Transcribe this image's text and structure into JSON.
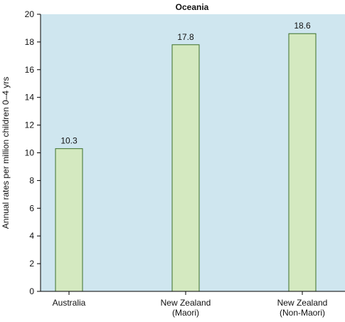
{
  "chart_data": {
    "type": "bar",
    "title": "Oceania",
    "xlabel": "",
    "ylabel": "Annual rates per million children 0–4 yrs",
    "categories": [
      [
        "Australia"
      ],
      [
        "New Zealand",
        "(Maori)"
      ],
      [
        "New Zealand",
        "(Non-Maori)"
      ]
    ],
    "values": [
      10.3,
      17.8,
      18.6
    ],
    "value_labels": [
      "10.3",
      "17.8",
      "18.6"
    ],
    "ylim": [
      0,
      20
    ],
    "yticks": [
      0,
      2,
      4,
      6,
      8,
      10,
      12,
      14,
      16,
      18,
      20
    ],
    "grid": false,
    "legend": "none",
    "colors": {
      "plot_background": "#cfe6ef",
      "bar_fill": "#d4e9c0",
      "bar_stroke": "#3c6e2a",
      "axis": "#000000"
    }
  }
}
